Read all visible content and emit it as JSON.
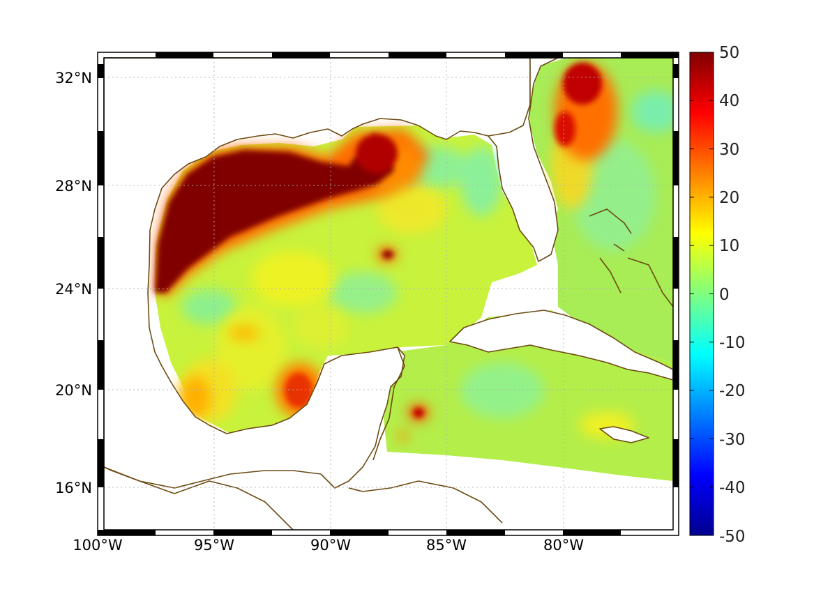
{
  "map": {
    "projection": "mercator",
    "lon_range": [
      -100,
      -75
    ],
    "lat_range": [
      14.3,
      33
    ],
    "lon_ticks": [
      "100°W",
      "95°W",
      "90°W",
      "85°W",
      "80°W"
    ],
    "lat_ticks": [
      "32°N",
      "28°N",
      "24°N",
      "20°N",
      "16°N"
    ],
    "grid": "dotted",
    "coastline_color": "#6b4a12",
    "land_color": "#ffffff",
    "frame_style": "alternating black/white border"
  },
  "colorbar": {
    "colormap": "jet",
    "ticks": [
      "50",
      "40",
      "30",
      "20",
      "10",
      "0",
      "-10",
      "-20",
      "-30",
      "-40",
      "-50"
    ],
    "range": [
      -50,
      50
    ]
  },
  "field": {
    "description_values": "dominant value ~5 (green-yellow); >50 along northern/western Gulf shelf; 20-50 near Mississippi outflow, Gulf Stream off Carolinas, Campeche and isolated eddies",
    "high_regions": [
      {
        "label": "northwest-shelf",
        "value": 50
      },
      {
        "label": "mississippi-plume",
        "value": 45
      },
      {
        "label": "carolina-gulf-stream",
        "value": 42
      },
      {
        "label": "campeche-bank",
        "value": 30
      },
      {
        "label": "tamaulipas-coast",
        "value": 22
      },
      {
        "label": "gulf-eddy",
        "value": 45
      },
      {
        "label": "caribbean-eddy",
        "value": 38
      }
    ]
  }
}
